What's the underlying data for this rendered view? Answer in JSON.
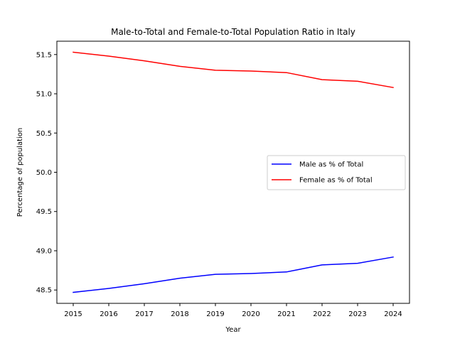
{
  "chart_data": {
    "type": "line",
    "title": "Male-to-Total and Female-to-Total Population Ratio in Italy",
    "xlabel": "Year",
    "ylabel": "Percentage of population",
    "x": [
      2015,
      2016,
      2017,
      2018,
      2019,
      2020,
      2021,
      2022,
      2023,
      2024
    ],
    "xticks": [
      "2015",
      "2016",
      "2017",
      "2018",
      "2019",
      "2020",
      "2021",
      "2022",
      "2023",
      "2024"
    ],
    "ylim": [
      48.33,
      51.67
    ],
    "yticks": [
      48.5,
      49.0,
      49.5,
      50.0,
      50.5,
      51.0,
      51.5
    ],
    "yticklabels": [
      "48.5",
      "49.0",
      "49.5",
      "50.0",
      "50.5",
      "51.0",
      "51.5"
    ],
    "grid": false,
    "legend_position": "center-right",
    "series": [
      {
        "name": "Male as % of Total",
        "color": "#0000ff",
        "values": [
          48.47,
          48.52,
          48.58,
          48.65,
          48.7,
          48.71,
          48.73,
          48.82,
          48.84,
          48.92
        ]
      },
      {
        "name": "Female as % of Total",
        "color": "#ff0000",
        "values": [
          51.53,
          51.48,
          51.42,
          51.35,
          51.3,
          51.29,
          51.27,
          51.18,
          51.16,
          51.08
        ]
      }
    ]
  }
}
